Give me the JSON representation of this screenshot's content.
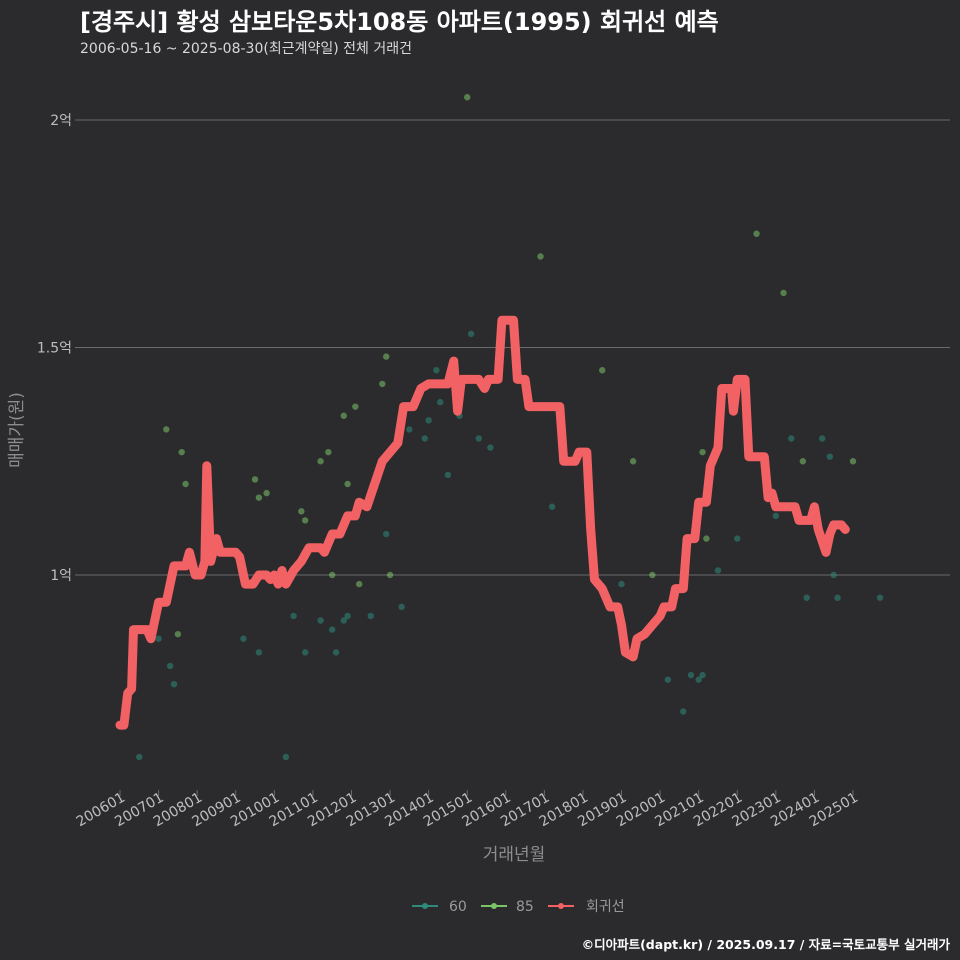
{
  "header": {
    "title": "[경주시] 황성 삼보타운5차108동 아파트(1995) 회귀선 예측",
    "subtitle": "2006-05-16 ~ 2025-08-30(최근계약일) 전체 거래건"
  },
  "footer": {
    "credit": "©디아파트(dapt.kr) / 2025.09.17 / 자료=국토교통부 실거래가"
  },
  "colors": {
    "series60": "#2e8b7a",
    "series85": "#7cc46a",
    "trend": "#f26163",
    "grid": "#6a6a6a",
    "background": "#2b2b2d"
  },
  "chart_data": {
    "type": "scatter",
    "title": "[경주시] 황성 삼보타운5차108동 아파트(1995) 회귀선 예측",
    "xlabel": "거래년월",
    "ylabel": "매매가(원)",
    "xlim": [
      2005.8,
      2026.3
    ],
    "ylim": [
      0.5,
      2.12
    ],
    "y_unit": "억",
    "y_ticks": [
      {
        "value": 1.0,
        "label": "1억"
      },
      {
        "value": 1.5,
        "label": "1.5억"
      },
      {
        "value": 2.0,
        "label": "2억"
      }
    ],
    "x_ticks": [
      {
        "value": 2006.0,
        "label": "200601"
      },
      {
        "value": 2007.0,
        "label": "200701"
      },
      {
        "value": 2008.0,
        "label": "200801"
      },
      {
        "value": 2009.0,
        "label": "200901"
      },
      {
        "value": 2010.0,
        "label": "201001"
      },
      {
        "value": 2011.0,
        "label": "201101"
      },
      {
        "value": 2012.0,
        "label": "201201"
      },
      {
        "value": 2013.0,
        "label": "201301"
      },
      {
        "value": 2014.0,
        "label": "201401"
      },
      {
        "value": 2015.0,
        "label": "201501"
      },
      {
        "value": 2016.0,
        "label": "201601"
      },
      {
        "value": 2017.0,
        "label": "201701"
      },
      {
        "value": 2018.0,
        "label": "201801"
      },
      {
        "value": 2019.0,
        "label": "201901"
      },
      {
        "value": 2020.0,
        "label": "202001"
      },
      {
        "value": 2021.0,
        "label": "202101"
      },
      {
        "value": 2022.0,
        "label": "202201"
      },
      {
        "value": 2023.0,
        "label": "202301"
      },
      {
        "value": 2024.0,
        "label": "202401"
      },
      {
        "value": 2025.0,
        "label": "202501"
      }
    ],
    "legend": [
      {
        "name": "60",
        "type": "point"
      },
      {
        "name": "85",
        "type": "point"
      },
      {
        "name": "회귀선",
        "type": "line"
      }
    ],
    "series": [
      {
        "name": "60",
        "points": [
          [
            2006.5,
            0.6
          ],
          [
            2007.3,
            0.8
          ],
          [
            2007.4,
            0.76
          ],
          [
            2007.0,
            0.86
          ],
          [
            2009.2,
            0.86
          ],
          [
            2009.6,
            0.83
          ],
          [
            2010.5,
            0.91
          ],
          [
            2010.8,
            0.83
          ],
          [
            2011.2,
            0.9
          ],
          [
            2011.5,
            0.88
          ],
          [
            2011.6,
            0.83
          ],
          [
            2011.8,
            0.9
          ],
          [
            2011.9,
            0.91
          ],
          [
            2012.5,
            0.91
          ],
          [
            2012.9,
            1.09
          ],
          [
            2013.3,
            0.93
          ],
          [
            2013.5,
            1.32
          ],
          [
            2013.9,
            1.3
          ],
          [
            2014.0,
            1.34
          ],
          [
            2014.3,
            1.38
          ],
          [
            2014.5,
            1.22
          ],
          [
            2014.8,
            1.35
          ],
          [
            2015.1,
            1.53
          ],
          [
            2015.3,
            1.3
          ],
          [
            2015.6,
            1.28
          ],
          [
            2017.2,
            1.15
          ],
          [
            2019.0,
            0.98
          ],
          [
            2020.2,
            0.77
          ],
          [
            2020.6,
            0.7
          ],
          [
            2020.8,
            0.78
          ],
          [
            2021.0,
            0.77
          ],
          [
            2021.1,
            0.78
          ],
          [
            2021.5,
            1.01
          ],
          [
            2022.0,
            1.08
          ],
          [
            2023.0,
            1.13
          ],
          [
            2023.4,
            1.3
          ],
          [
            2023.8,
            0.95
          ],
          [
            2024.2,
            1.3
          ],
          [
            2024.4,
            1.26
          ],
          [
            2024.5,
            1.0
          ],
          [
            2024.6,
            0.95
          ],
          [
            2025.7,
            0.95
          ],
          [
            2010.3,
            0.6
          ],
          [
            2014.2,
            1.45
          ]
        ]
      },
      {
        "name": "85",
        "points": [
          [
            2007.2,
            1.32
          ],
          [
            2007.5,
            0.87
          ],
          [
            2007.6,
            1.27
          ],
          [
            2007.7,
            1.2
          ],
          [
            2009.5,
            1.21
          ],
          [
            2009.6,
            1.17
          ],
          [
            2009.8,
            1.18
          ],
          [
            2010.7,
            1.14
          ],
          [
            2010.8,
            1.12
          ],
          [
            2011.2,
            1.25
          ],
          [
            2011.4,
            1.27
          ],
          [
            2011.5,
            1.0
          ],
          [
            2011.8,
            1.35
          ],
          [
            2011.9,
            1.2
          ],
          [
            2012.1,
            1.37
          ],
          [
            2012.2,
            0.98
          ],
          [
            2012.8,
            1.42
          ],
          [
            2012.9,
            1.48
          ],
          [
            2013.0,
            1.0
          ],
          [
            2015.0,
            2.05
          ],
          [
            2016.9,
            1.7
          ],
          [
            2018.5,
            1.45
          ],
          [
            2019.3,
            1.25
          ],
          [
            2019.8,
            1.0
          ],
          [
            2021.1,
            1.27
          ],
          [
            2021.2,
            1.08
          ],
          [
            2022.5,
            1.75
          ],
          [
            2023.2,
            1.62
          ],
          [
            2023.7,
            1.25
          ],
          [
            2025.0,
            1.25
          ]
        ]
      },
      {
        "name": "회귀선",
        "points": [
          [
            2006.0,
            0.67
          ],
          [
            2006.1,
            0.67
          ],
          [
            2006.2,
            0.74
          ],
          [
            2006.3,
            0.75
          ],
          [
            2006.35,
            0.88
          ],
          [
            2006.7,
            0.88
          ],
          [
            2006.8,
            0.86
          ],
          [
            2007.0,
            0.94
          ],
          [
            2007.2,
            0.94
          ],
          [
            2007.4,
            1.02
          ],
          [
            2007.7,
            1.02
          ],
          [
            2007.8,
            1.05
          ],
          [
            2007.95,
            1.0
          ],
          [
            2008.1,
            1.0
          ],
          [
            2008.2,
            1.03
          ],
          [
            2008.25,
            1.24
          ],
          [
            2008.35,
            1.03
          ],
          [
            2008.5,
            1.08
          ],
          [
            2008.6,
            1.05
          ],
          [
            2009.0,
            1.05
          ],
          [
            2009.1,
            1.04
          ],
          [
            2009.25,
            0.98
          ],
          [
            2009.45,
            0.98
          ],
          [
            2009.6,
            1.0
          ],
          [
            2009.8,
            1.0
          ],
          [
            2009.9,
            0.99
          ],
          [
            2010.0,
            1.0
          ],
          [
            2010.1,
            0.98
          ],
          [
            2010.2,
            1.01
          ],
          [
            2010.3,
            0.98
          ],
          [
            2010.5,
            1.01
          ],
          [
            2010.7,
            1.03
          ],
          [
            2010.9,
            1.06
          ],
          [
            2011.2,
            1.06
          ],
          [
            2011.3,
            1.05
          ],
          [
            2011.5,
            1.09
          ],
          [
            2011.7,
            1.09
          ],
          [
            2011.9,
            1.13
          ],
          [
            2012.1,
            1.13
          ],
          [
            2012.2,
            1.16
          ],
          [
            2012.4,
            1.15
          ],
          [
            2012.6,
            1.2
          ],
          [
            2012.8,
            1.25
          ],
          [
            2013.0,
            1.27
          ],
          [
            2013.2,
            1.29
          ],
          [
            2013.35,
            1.37
          ],
          [
            2013.6,
            1.37
          ],
          [
            2013.8,
            1.41
          ],
          [
            2014.0,
            1.42
          ],
          [
            2014.3,
            1.42
          ],
          [
            2014.5,
            1.42
          ],
          [
            2014.65,
            1.47
          ],
          [
            2014.75,
            1.36
          ],
          [
            2014.85,
            1.43
          ],
          [
            2015.1,
            1.43
          ],
          [
            2015.3,
            1.43
          ],
          [
            2015.45,
            1.41
          ],
          [
            2015.55,
            1.43
          ],
          [
            2015.8,
            1.43
          ],
          [
            2015.9,
            1.56
          ],
          [
            2016.2,
            1.56
          ],
          [
            2016.3,
            1.43
          ],
          [
            2016.5,
            1.43
          ],
          [
            2016.6,
            1.37
          ],
          [
            2017.4,
            1.37
          ],
          [
            2017.5,
            1.25
          ],
          [
            2017.8,
            1.25
          ],
          [
            2017.9,
            1.27
          ],
          [
            2018.1,
            1.27
          ],
          [
            2018.2,
            1.1
          ],
          [
            2018.3,
            0.99
          ],
          [
            2018.5,
            0.97
          ],
          [
            2018.7,
            0.93
          ],
          [
            2018.9,
            0.93
          ],
          [
            2019.0,
            0.89
          ],
          [
            2019.1,
            0.83
          ],
          [
            2019.3,
            0.82
          ],
          [
            2019.4,
            0.86
          ],
          [
            2019.6,
            0.87
          ],
          [
            2019.8,
            0.89
          ],
          [
            2020.0,
            0.91
          ],
          [
            2020.1,
            0.93
          ],
          [
            2020.3,
            0.93
          ],
          [
            2020.4,
            0.97
          ],
          [
            2020.6,
            0.97
          ],
          [
            2020.7,
            1.08
          ],
          [
            2020.9,
            1.08
          ],
          [
            2021.0,
            1.16
          ],
          [
            2021.2,
            1.16
          ],
          [
            2021.3,
            1.24
          ],
          [
            2021.5,
            1.28
          ],
          [
            2021.6,
            1.41
          ],
          [
            2021.85,
            1.41
          ],
          [
            2021.9,
            1.36
          ],
          [
            2022.0,
            1.43
          ],
          [
            2022.2,
            1.43
          ],
          [
            2022.3,
            1.26
          ],
          [
            2022.7,
            1.26
          ],
          [
            2022.8,
            1.17
          ],
          [
            2022.9,
            1.18
          ],
          [
            2023.0,
            1.15
          ],
          [
            2023.5,
            1.15
          ],
          [
            2023.6,
            1.12
          ],
          [
            2023.9,
            1.12
          ],
          [
            2024.0,
            1.15
          ],
          [
            2024.1,
            1.1
          ],
          [
            2024.3,
            1.05
          ],
          [
            2024.4,
            1.09
          ],
          [
            2024.5,
            1.11
          ],
          [
            2024.7,
            1.11
          ],
          [
            2024.8,
            1.1
          ]
        ]
      }
    ]
  }
}
